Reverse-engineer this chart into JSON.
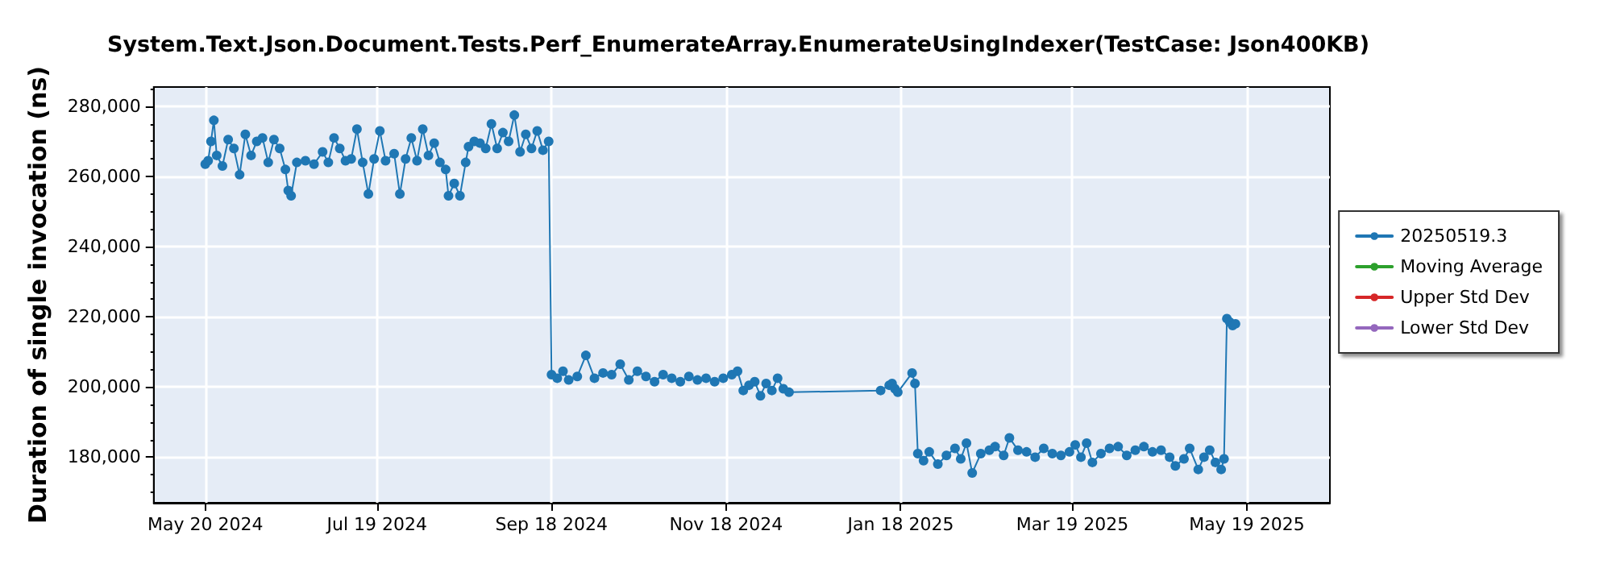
{
  "chart_data": {
    "type": "line",
    "title": "System.Text.Json.Document.Tests.Perf_EnumerateArray.EnumerateUsingIndexer(TestCase: Json400KB)",
    "ylabel": "Duration of single invocation (ns)",
    "xlim": [
      "2024-05-02",
      "2025-06-17"
    ],
    "xticks": [
      {
        "value": "2024-05-20",
        "label": "May 20 2024"
      },
      {
        "value": "2024-07-19",
        "label": "Jul 19 2024"
      },
      {
        "value": "2024-09-18",
        "label": "Sep 18 2024"
      },
      {
        "value": "2024-11-18",
        "label": "Nov 18 2024"
      },
      {
        "value": "2025-01-18",
        "label": "Jan 18 2025"
      },
      {
        "value": "2025-03-19",
        "label": "Mar 19 2025"
      },
      {
        "value": "2025-05-19",
        "label": "May 19 2025"
      }
    ],
    "ylim": [
      167000,
      285500
    ],
    "yticks": [
      {
        "value": 180000,
        "label": "180,000"
      },
      {
        "value": 200000,
        "label": "200,000"
      },
      {
        "value": 220000,
        "label": "220,000"
      },
      {
        "value": 240000,
        "label": "240,000"
      },
      {
        "value": 260000,
        "label": "260,000"
      },
      {
        "value": 280000,
        "label": "280,000"
      }
    ],
    "grid": true,
    "legend": "right",
    "marker": "circle",
    "line_style": "solid",
    "series": [
      {
        "name": "20250519.3",
        "color": "#1f77b4",
        "x": [
          "2024-05-20",
          "2024-05-21",
          "2024-05-22",
          "2024-05-23",
          "2024-05-24",
          "2024-05-26",
          "2024-05-28",
          "2024-05-30",
          "2024-06-01",
          "2024-06-03",
          "2024-06-05",
          "2024-06-07",
          "2024-06-09",
          "2024-06-11",
          "2024-06-13",
          "2024-06-15",
          "2024-06-17",
          "2024-06-18",
          "2024-06-19",
          "2024-06-21",
          "2024-06-24",
          "2024-06-27",
          "2024-06-30",
          "2024-07-02",
          "2024-07-04",
          "2024-07-06",
          "2024-07-08",
          "2024-07-10",
          "2024-07-12",
          "2024-07-14",
          "2024-07-16",
          "2024-07-18",
          "2024-07-20",
          "2024-07-22",
          "2024-07-25",
          "2024-07-27",
          "2024-07-29",
          "2024-07-31",
          "2024-08-02",
          "2024-08-04",
          "2024-08-06",
          "2024-08-08",
          "2024-08-10",
          "2024-08-12",
          "2024-08-13",
          "2024-08-15",
          "2024-08-17",
          "2024-08-19",
          "2024-08-20",
          "2024-08-22",
          "2024-08-24",
          "2024-08-26",
          "2024-08-28",
          "2024-08-30",
          "2024-09-01",
          "2024-09-03",
          "2024-09-05",
          "2024-09-07",
          "2024-09-09",
          "2024-09-11",
          "2024-09-13",
          "2024-09-15",
          "2024-09-17",
          "2024-09-18",
          "2024-09-20",
          "2024-09-22",
          "2024-09-24",
          "2024-09-27",
          "2024-09-30",
          "2024-10-03",
          "2024-10-06",
          "2024-10-09",
          "2024-10-12",
          "2024-10-15",
          "2024-10-18",
          "2024-10-21",
          "2024-10-24",
          "2024-10-27",
          "2024-10-30",
          "2024-11-02",
          "2024-11-05",
          "2024-11-08",
          "2024-11-11",
          "2024-11-14",
          "2024-11-17",
          "2024-11-20",
          "2024-11-22",
          "2024-11-24",
          "2024-11-26",
          "2024-11-28",
          "2024-11-30",
          "2024-12-02",
          "2024-12-04",
          "2024-12-06",
          "2024-12-08",
          "2024-12-10",
          "2025-01-11",
          "2025-01-14",
          "2025-01-15",
          "2025-01-16",
          "2025-01-17",
          "2025-01-22",
          "2025-01-23",
          "2025-01-24",
          "2025-01-26",
          "2025-01-28",
          "2025-01-31",
          "2025-02-03",
          "2025-02-06",
          "2025-02-08",
          "2025-02-10",
          "2025-02-12",
          "2025-02-15",
          "2025-02-18",
          "2025-02-20",
          "2025-02-23",
          "2025-02-25",
          "2025-02-28",
          "2025-03-03",
          "2025-03-06",
          "2025-03-09",
          "2025-03-12",
          "2025-03-15",
          "2025-03-18",
          "2025-03-20",
          "2025-03-22",
          "2025-03-24",
          "2025-03-26",
          "2025-03-29",
          "2025-04-01",
          "2025-04-04",
          "2025-04-07",
          "2025-04-10",
          "2025-04-13",
          "2025-04-16",
          "2025-04-19",
          "2025-04-22",
          "2025-04-24",
          "2025-04-27",
          "2025-04-29",
          "2025-05-02",
          "2025-05-04",
          "2025-05-06",
          "2025-05-08",
          "2025-05-10",
          "2025-05-11",
          "2025-05-12",
          "2025-05-13",
          "2025-05-14",
          "2025-05-15"
        ],
        "values": [
          263500,
          264500,
          270000,
          276000,
          266000,
          263000,
          270500,
          268000,
          260500,
          272000,
          266000,
          270000,
          271000,
          264000,
          270500,
          268000,
          262000,
          256000,
          254500,
          264000,
          264500,
          263500,
          267000,
          264000,
          271000,
          268000,
          264500,
          265000,
          273500,
          264000,
          255000,
          265000,
          273000,
          264500,
          266500,
          255000,
          265000,
          271000,
          264500,
          273500,
          266000,
          269500,
          264000,
          262000,
          254500,
          258000,
          254500,
          264000,
          268500,
          270000,
          269500,
          268000,
          275000,
          268000,
          272500,
          270000,
          277500,
          267000,
          272000,
          268000,
          273000,
          267500,
          270000,
          203500,
          202500,
          204500,
          202000,
          203000,
          209000,
          202500,
          204000,
          203500,
          206500,
          202000,
          204500,
          203000,
          201500,
          203500,
          202500,
          201500,
          203000,
          202000,
          202500,
          201500,
          202500,
          203500,
          204500,
          199000,
          200500,
          201500,
          197500,
          201000,
          199000,
          202500,
          199500,
          198500,
          199000,
          200500,
          201000,
          199500,
          198500,
          204000,
          201000,
          181000,
          179000,
          181500,
          178000,
          180500,
          182500,
          179500,
          184000,
          175500,
          181000,
          182000,
          183000,
          180500,
          185500,
          182000,
          181500,
          180000,
          182500,
          181000,
          180500,
          181500,
          183500,
          180000,
          184000,
          178500,
          181000,
          182500,
          183000,
          180500,
          182000,
          183000,
          181500,
          182000,
          180000,
          177500,
          179500,
          182500,
          176500,
          180000,
          182000,
          178500,
          176500,
          179500,
          219500,
          218500,
          217500,
          218000
        ]
      },
      {
        "name": "Moving Average",
        "color": "#2ca02c"
      },
      {
        "name": "Upper Std Dev",
        "color": "#d62728"
      },
      {
        "name": "Lower Std Dev",
        "color": "#9467bd"
      }
    ]
  }
}
